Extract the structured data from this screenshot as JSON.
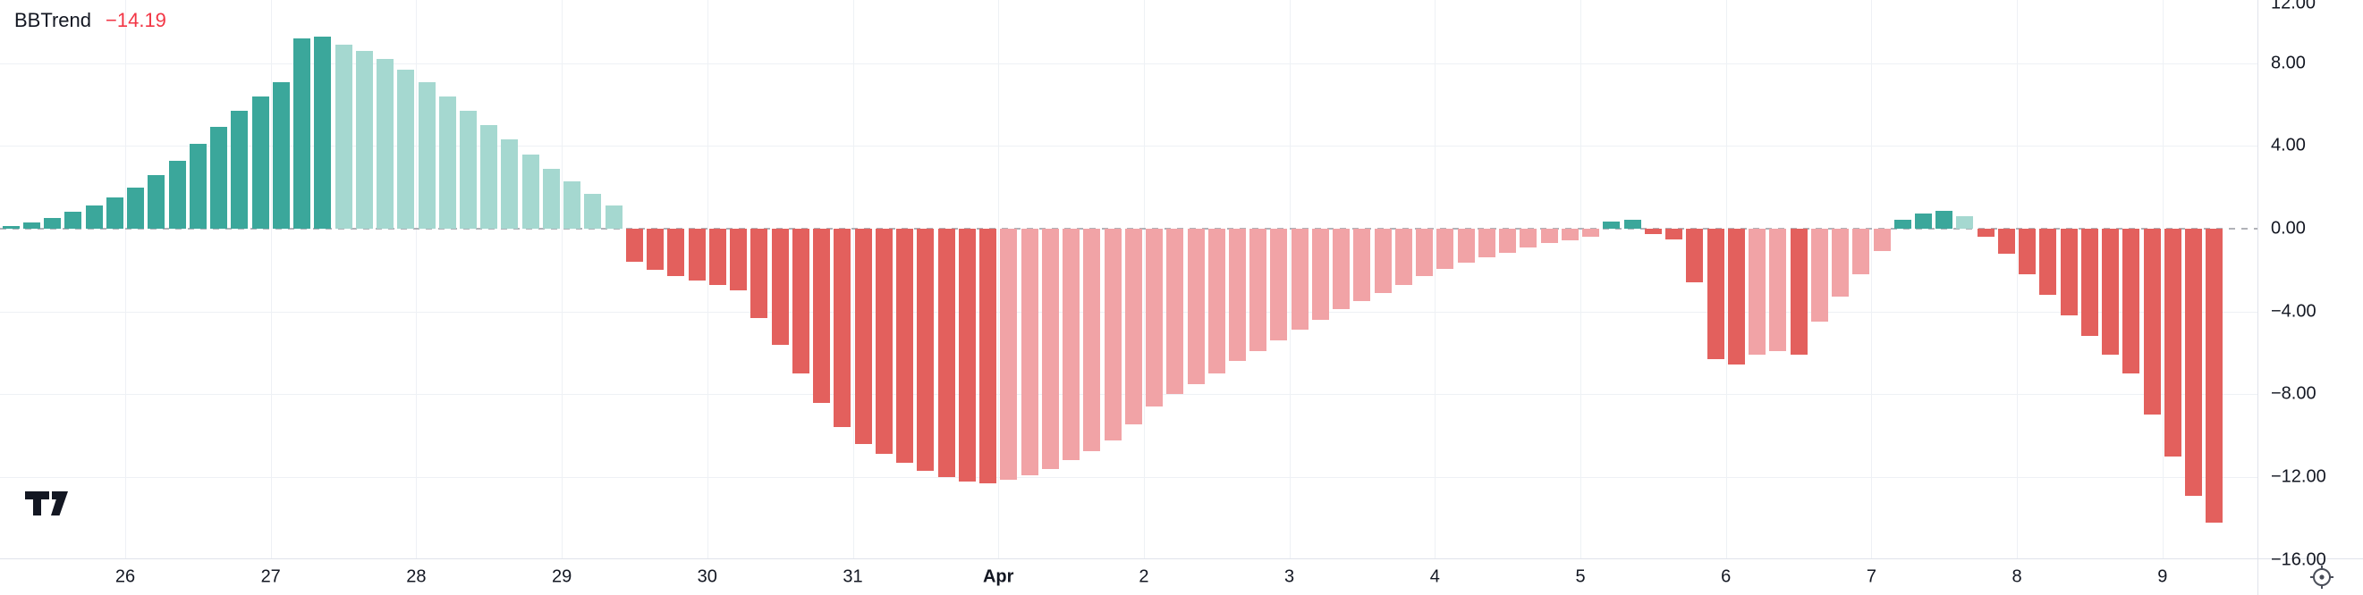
{
  "legend": {
    "title": "BBTrend",
    "value": "−14.19"
  },
  "colors": {
    "pos_strong": "#3ba79b",
    "pos_weak": "#a5d8d0",
    "neg_strong": "#e3605d",
    "neg_weak": "#f1a3a6",
    "value_red": "#f23645",
    "grid": "#eef1f5",
    "separator": "#e0e3eb",
    "zero_line": "#9598a1",
    "axis_text": "#131722",
    "icon_gray": "#4a4e59"
  },
  "icons": {
    "logo": "tradingview-logo",
    "axis_corner": "crosshair-target-icon"
  },
  "chart_data": {
    "type": "bar",
    "title": "BBTrend",
    "last_value": -14.19,
    "ylim": [
      -15.93,
      11.05
    ],
    "grid": true,
    "legend_position": "top-left",
    "y_ticks": [
      12,
      8,
      4,
      0,
      -4,
      -8,
      -12,
      -16
    ],
    "y_tick_labels": [
      "12.00",
      "8.00",
      "4.00",
      "0.00",
      "−4.00",
      "−8.00",
      "−12.00",
      "−16.00"
    ],
    "x_labels": [
      {
        "text": "26",
        "bold": false
      },
      {
        "text": "27",
        "bold": false
      },
      {
        "text": "28",
        "bold": false
      },
      {
        "text": "29",
        "bold": false
      },
      {
        "text": "30",
        "bold": false
      },
      {
        "text": "31",
        "bold": false
      },
      {
        "text": "Apr",
        "bold": true
      },
      {
        "text": "2",
        "bold": false
      },
      {
        "text": "3",
        "bold": false
      },
      {
        "text": "4",
        "bold": false
      },
      {
        "text": "5",
        "bold": false
      },
      {
        "text": "6",
        "bold": false
      },
      {
        "text": "7",
        "bold": false
      },
      {
        "text": "8",
        "bold": false
      },
      {
        "text": "9",
        "bold": false
      }
    ],
    "bars_per_day": 7,
    "first_day_bar_index": 6,
    "color_rule": "positive rising = pos_strong, positive falling = pos_weak, negative falling = neg_strong, negative rising = neg_weak",
    "values": [
      0.15,
      0.3,
      0.5,
      0.8,
      1.1,
      1.5,
      2.0,
      2.6,
      3.3,
      4.1,
      4.9,
      5.7,
      6.4,
      7.1,
      9.2,
      9.3,
      8.9,
      8.6,
      8.2,
      7.7,
      7.1,
      6.4,
      5.7,
      5.0,
      4.3,
      3.6,
      2.9,
      2.3,
      1.7,
      1.1,
      -1.6,
      -2.0,
      -2.3,
      -2.5,
      -2.7,
      -3.0,
      -4.3,
      -5.6,
      -7.0,
      -8.4,
      -9.6,
      -10.4,
      -10.9,
      -11.3,
      -11.7,
      -12.0,
      -12.2,
      -12.3,
      -12.15,
      -11.9,
      -11.6,
      -11.2,
      -10.75,
      -10.25,
      -9.45,
      -8.6,
      -8.0,
      -7.5,
      -7.0,
      -6.4,
      -5.9,
      -5.4,
      -4.9,
      -4.4,
      -3.9,
      -3.5,
      -3.1,
      -2.7,
      -2.3,
      -1.95,
      -1.65,
      -1.4,
      -1.15,
      -0.9,
      -0.7,
      -0.55,
      -0.4,
      0.35,
      0.45,
      -0.25,
      -0.5,
      -2.6,
      -6.3,
      -6.55,
      -6.1,
      -5.9,
      -6.1,
      -4.5,
      -3.3,
      -2.2,
      -1.1,
      0.45,
      0.75,
      0.85,
      0.6,
      -0.4,
      -1.2,
      -2.2,
      -3.2,
      -4.2,
      -5.2,
      -6.1,
      -7.0,
      -9.0,
      -11.0,
      -12.9,
      -14.19
    ]
  }
}
